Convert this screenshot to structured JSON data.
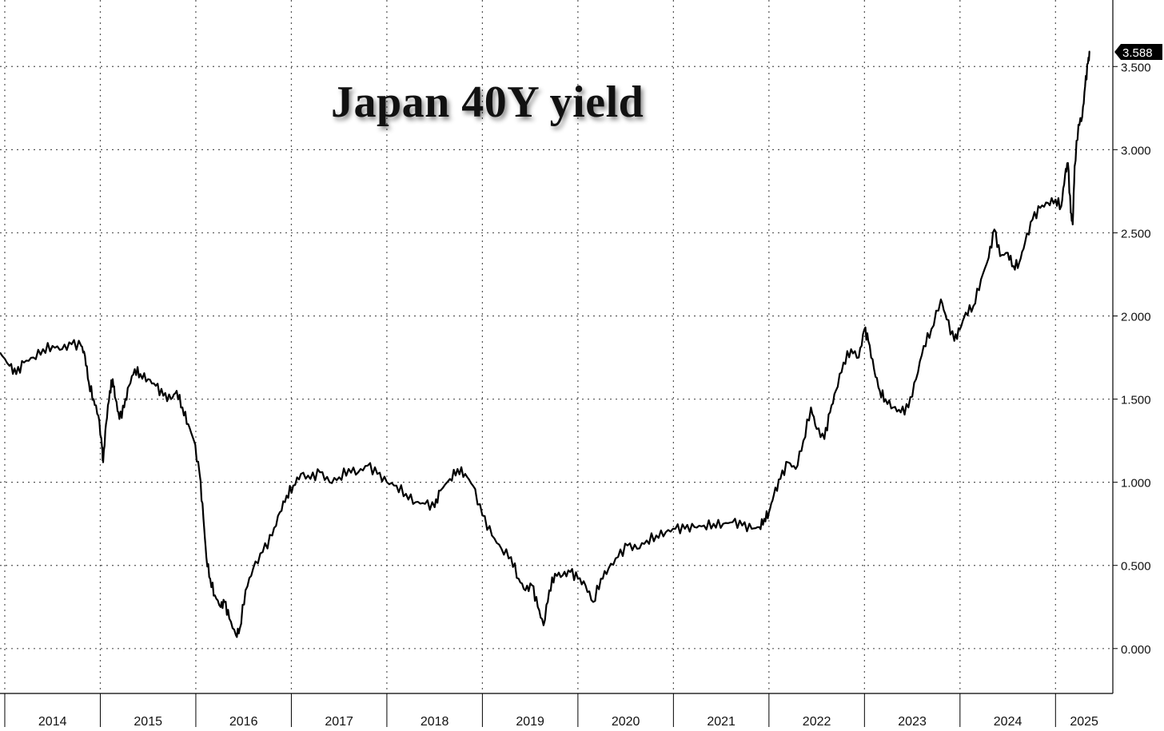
{
  "chart_data": {
    "type": "line",
    "title": "Japan 40Y yield",
    "xlabel": "",
    "ylabel": "",
    "grid": true,
    "line_color": "#000000",
    "xlim": [
      2013.95,
      2025.6
    ],
    "ylim": [
      -0.27,
      3.9
    ],
    "y_ticks": [
      {
        "value": 0.0,
        "label": "0.000"
      },
      {
        "value": 0.5,
        "label": "0.500"
      },
      {
        "value": 1.0,
        "label": "1.000"
      },
      {
        "value": 1.5,
        "label": "1.500"
      },
      {
        "value": 2.0,
        "label": "2.000"
      },
      {
        "value": 2.5,
        "label": "2.500"
      },
      {
        "value": 3.0,
        "label": "3.000"
      },
      {
        "value": 3.5,
        "label": "3.500"
      }
    ],
    "x_ticks": [
      {
        "year": 2014,
        "label": "2014"
      },
      {
        "year": 2015,
        "label": "2015"
      },
      {
        "year": 2016,
        "label": "2016"
      },
      {
        "year": 2017,
        "label": "2017"
      },
      {
        "year": 2018,
        "label": "2018"
      },
      {
        "year": 2019,
        "label": "2019"
      },
      {
        "year": 2020,
        "label": "2020"
      },
      {
        "year": 2021,
        "label": "2021"
      },
      {
        "year": 2022,
        "label": "2022"
      },
      {
        "year": 2023,
        "label": "2023"
      },
      {
        "year": 2024,
        "label": "2024"
      },
      {
        "year": 2025,
        "label": "2025"
      }
    ],
    "last_value": {
      "value": 3.588,
      "label": "3.588"
    },
    "series": [
      {
        "values": [
          [
            2013.95,
            1.78
          ],
          [
            2014.05,
            1.7
          ],
          [
            2014.12,
            1.65
          ],
          [
            2014.2,
            1.72
          ],
          [
            2014.3,
            1.75
          ],
          [
            2014.4,
            1.8
          ],
          [
            2014.5,
            1.82
          ],
          [
            2014.6,
            1.8
          ],
          [
            2014.7,
            1.83
          ],
          [
            2014.8,
            1.82
          ],
          [
            2014.84,
            1.76
          ],
          [
            2014.88,
            1.6
          ],
          [
            2014.93,
            1.5
          ],
          [
            2014.98,
            1.4
          ],
          [
            2015.02,
            1.2
          ],
          [
            2015.03,
            1.12
          ],
          [
            2015.06,
            1.35
          ],
          [
            2015.1,
            1.55
          ],
          [
            2015.13,
            1.62
          ],
          [
            2015.16,
            1.5
          ],
          [
            2015.2,
            1.38
          ],
          [
            2015.25,
            1.45
          ],
          [
            2015.3,
            1.58
          ],
          [
            2015.36,
            1.68
          ],
          [
            2015.42,
            1.65
          ],
          [
            2015.5,
            1.62
          ],
          [
            2015.58,
            1.58
          ],
          [
            2015.66,
            1.52
          ],
          [
            2015.74,
            1.5
          ],
          [
            2015.8,
            1.55
          ],
          [
            2015.86,
            1.45
          ],
          [
            2015.92,
            1.35
          ],
          [
            2015.98,
            1.25
          ],
          [
            2016.04,
            1.05
          ],
          [
            2016.08,
            0.78
          ],
          [
            2016.11,
            0.55
          ],
          [
            2016.15,
            0.42
          ],
          [
            2016.2,
            0.32
          ],
          [
            2016.26,
            0.25
          ],
          [
            2016.3,
            0.28
          ],
          [
            2016.35,
            0.18
          ],
          [
            2016.42,
            0.08
          ],
          [
            2016.46,
            0.12
          ],
          [
            2016.52,
            0.35
          ],
          [
            2016.6,
            0.48
          ],
          [
            2016.7,
            0.58
          ],
          [
            2016.8,
            0.68
          ],
          [
            2016.88,
            0.82
          ],
          [
            2016.95,
            0.92
          ],
          [
            2017.02,
            0.98
          ],
          [
            2017.1,
            1.05
          ],
          [
            2017.2,
            1.02
          ],
          [
            2017.3,
            1.06
          ],
          [
            2017.4,
            1.0
          ],
          [
            2017.5,
            1.03
          ],
          [
            2017.6,
            1.08
          ],
          [
            2017.7,
            1.06
          ],
          [
            2017.8,
            1.1
          ],
          [
            2017.9,
            1.05
          ],
          [
            2018.0,
            1.0
          ],
          [
            2018.1,
            0.98
          ],
          [
            2018.2,
            0.93
          ],
          [
            2018.3,
            0.88
          ],
          [
            2018.4,
            0.87
          ],
          [
            2018.5,
            0.85
          ],
          [
            2018.56,
            0.95
          ],
          [
            2018.66,
            1.02
          ],
          [
            2018.74,
            1.08
          ],
          [
            2018.82,
            1.05
          ],
          [
            2018.9,
            0.98
          ],
          [
            2019.0,
            0.8
          ],
          [
            2019.1,
            0.68
          ],
          [
            2019.2,
            0.6
          ],
          [
            2019.3,
            0.55
          ],
          [
            2019.38,
            0.42
          ],
          [
            2019.45,
            0.35
          ],
          [
            2019.52,
            0.38
          ],
          [
            2019.58,
            0.25
          ],
          [
            2019.64,
            0.14
          ],
          [
            2019.7,
            0.35
          ],
          [
            2019.76,
            0.45
          ],
          [
            2019.84,
            0.44
          ],
          [
            2019.92,
            0.46
          ],
          [
            2020.0,
            0.42
          ],
          [
            2020.08,
            0.38
          ],
          [
            2020.16,
            0.28
          ],
          [
            2020.24,
            0.42
          ],
          [
            2020.32,
            0.48
          ],
          [
            2020.42,
            0.55
          ],
          [
            2020.52,
            0.62
          ],
          [
            2020.62,
            0.6
          ],
          [
            2020.72,
            0.65
          ],
          [
            2020.82,
            0.68
          ],
          [
            2020.92,
            0.7
          ],
          [
            2021.02,
            0.72
          ],
          [
            2021.12,
            0.72
          ],
          [
            2021.22,
            0.73
          ],
          [
            2021.32,
            0.74
          ],
          [
            2021.42,
            0.75
          ],
          [
            2021.52,
            0.75
          ],
          [
            2021.62,
            0.76
          ],
          [
            2021.72,
            0.74
          ],
          [
            2021.82,
            0.72
          ],
          [
            2021.9,
            0.73
          ],
          [
            2021.95,
            0.78
          ],
          [
            2022.0,
            0.82
          ],
          [
            2022.05,
            0.92
          ],
          [
            2022.12,
            1.02
          ],
          [
            2022.2,
            1.12
          ],
          [
            2022.28,
            1.08
          ],
          [
            2022.36,
            1.25
          ],
          [
            2022.44,
            1.45
          ],
          [
            2022.5,
            1.32
          ],
          [
            2022.58,
            1.26
          ],
          [
            2022.64,
            1.42
          ],
          [
            2022.7,
            1.55
          ],
          [
            2022.78,
            1.72
          ],
          [
            2022.86,
            1.8
          ],
          [
            2022.94,
            1.75
          ],
          [
            2023.0,
            1.92
          ],
          [
            2023.04,
            1.85
          ],
          [
            2023.1,
            1.68
          ],
          [
            2023.16,
            1.55
          ],
          [
            2023.22,
            1.5
          ],
          [
            2023.3,
            1.45
          ],
          [
            2023.38,
            1.42
          ],
          [
            2023.46,
            1.45
          ],
          [
            2023.54,
            1.62
          ],
          [
            2023.62,
            1.82
          ],
          [
            2023.7,
            1.92
          ],
          [
            2023.8,
            2.1
          ],
          [
            2023.86,
            1.98
          ],
          [
            2023.94,
            1.85
          ],
          [
            2024.0,
            1.92
          ],
          [
            2024.06,
            2.02
          ],
          [
            2024.14,
            2.06
          ],
          [
            2024.22,
            2.22
          ],
          [
            2024.3,
            2.35
          ],
          [
            2024.36,
            2.52
          ],
          [
            2024.42,
            2.36
          ],
          [
            2024.5,
            2.38
          ],
          [
            2024.56,
            2.3
          ],
          [
            2024.62,
            2.32
          ],
          [
            2024.68,
            2.44
          ],
          [
            2024.76,
            2.58
          ],
          [
            2024.84,
            2.65
          ],
          [
            2024.92,
            2.68
          ],
          [
            2025.0,
            2.7
          ],
          [
            2025.06,
            2.66
          ],
          [
            2025.1,
            2.85
          ],
          [
            2025.13,
            2.92
          ],
          [
            2025.16,
            2.62
          ],
          [
            2025.18,
            2.55
          ],
          [
            2025.2,
            2.9
          ],
          [
            2025.24,
            3.15
          ],
          [
            2025.28,
            3.2
          ],
          [
            2025.31,
            3.38
          ],
          [
            2025.34,
            3.52
          ],
          [
            2025.36,
            3.588
          ]
        ]
      }
    ]
  }
}
